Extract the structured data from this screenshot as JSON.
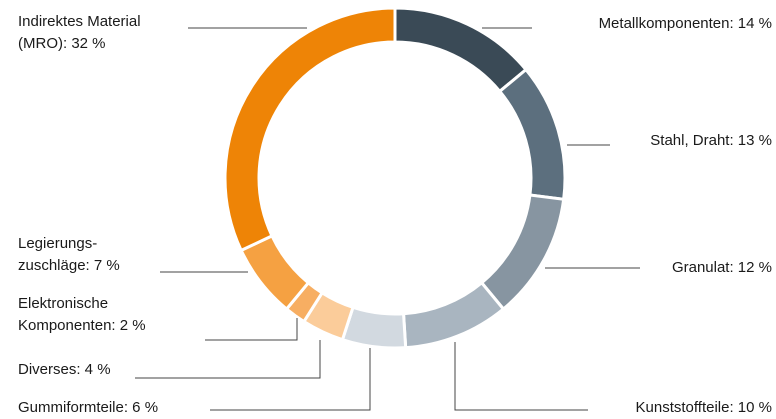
{
  "chart_data": {
    "type": "pie",
    "variant": "donut",
    "title": "",
    "slices": [
      {
        "label_lines": [
          "Metallkomponenten: 14 %"
        ],
        "value": 14,
        "color": "#3a4a56"
      },
      {
        "label_lines": [
          "Stahl, Draht: 13 %"
        ],
        "value": 13,
        "color": "#5c6f7e"
      },
      {
        "label_lines": [
          "Granulat: 12 %"
        ],
        "value": 12,
        "color": "#8795a1"
      },
      {
        "label_lines": [
          "Kunststoffteile: 10 %"
        ],
        "value": 10,
        "color": "#a9b5c0"
      },
      {
        "label_lines": [
          "Gummiformteile: 6 %"
        ],
        "value": 6,
        "color": "#d2d9e0"
      },
      {
        "label_lines": [
          "Diverses: 4 %"
        ],
        "value": 4,
        "color": "#fbcc9a"
      },
      {
        "label_lines": [
          "Elektronische",
          "Komponenten: 2 %"
        ],
        "value": 2,
        "color": "#f7ae62"
      },
      {
        "label_lines": [
          "Legierungs-",
          "zuschläge: 7 %"
        ],
        "value": 7,
        "color": "#f5a142"
      },
      {
        "label_lines": [
          "Indirektes Material",
          "(MRO): 32 %"
        ],
        "value": 32,
        "color": "#ee8406"
      }
    ],
    "legend": "none"
  }
}
